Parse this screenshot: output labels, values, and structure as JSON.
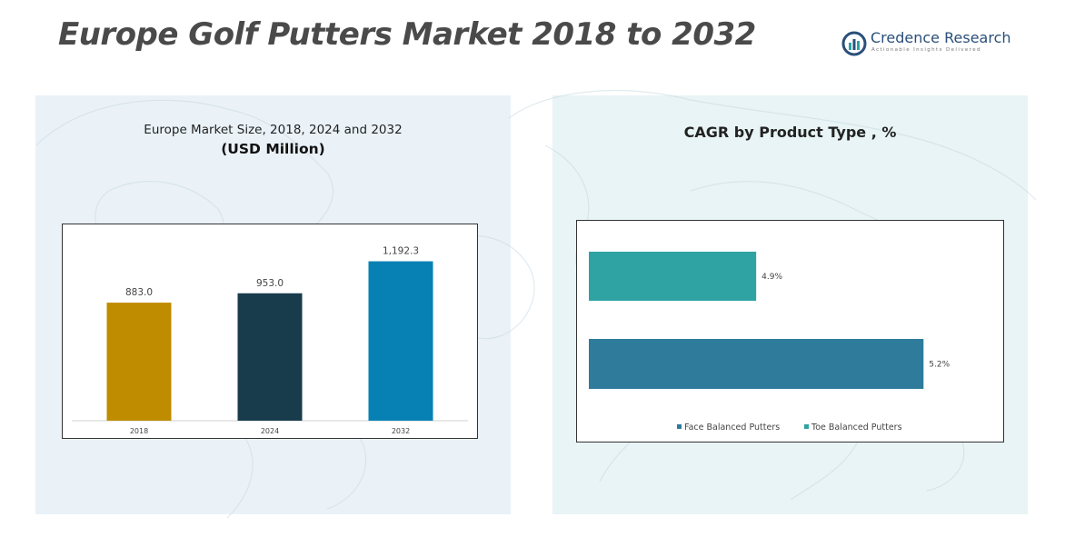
{
  "header": {
    "title": "Europe Golf Putters Market 2018 to 2032",
    "logo_name": "Credence Research",
    "logo_tagline": "Actionable Insights Delivered"
  },
  "left_panel": {
    "caption": "Europe Market Size, 2018, 2024 and 2032",
    "caption_bold": "(USD Million)"
  },
  "right_panel": {
    "caption": "CAGR by Product Type , %"
  },
  "colors": {
    "bar_2018": "#bf8c00",
    "bar_2024": "#183c4c",
    "bar_2032": "#0781b4",
    "face_balanced": "#2f7b9b",
    "toe_balanced": "#2fa3a3",
    "panel_left": "#eaf2f8",
    "panel_right": "#e8f4f5"
  },
  "chart_data": [
    {
      "type": "bar",
      "categories": [
        "2018",
        "2024",
        "2032"
      ],
      "values": [
        883.0,
        953.0,
        1192.3
      ],
      "value_labels": [
        "883.0",
        "953.0",
        "1,192.3"
      ],
      "title": "",
      "xlabel": "",
      "ylabel": "",
      "ylim": [
        0,
        1400
      ],
      "grid": false
    },
    {
      "type": "bar",
      "orientation": "horizontal",
      "categories": [
        "Toe Balanced Putters",
        "Face Balanced Putters"
      ],
      "values": [
        4.9,
        5.2
      ],
      "value_labels": [
        "4.9%",
        "5.2%"
      ],
      "legend": [
        "Face Balanced Putters",
        "Toe Balanced Putters"
      ],
      "legend_position": "bottom",
      "xlim": [
        4.6,
        5.25
      ],
      "grid": false
    }
  ]
}
